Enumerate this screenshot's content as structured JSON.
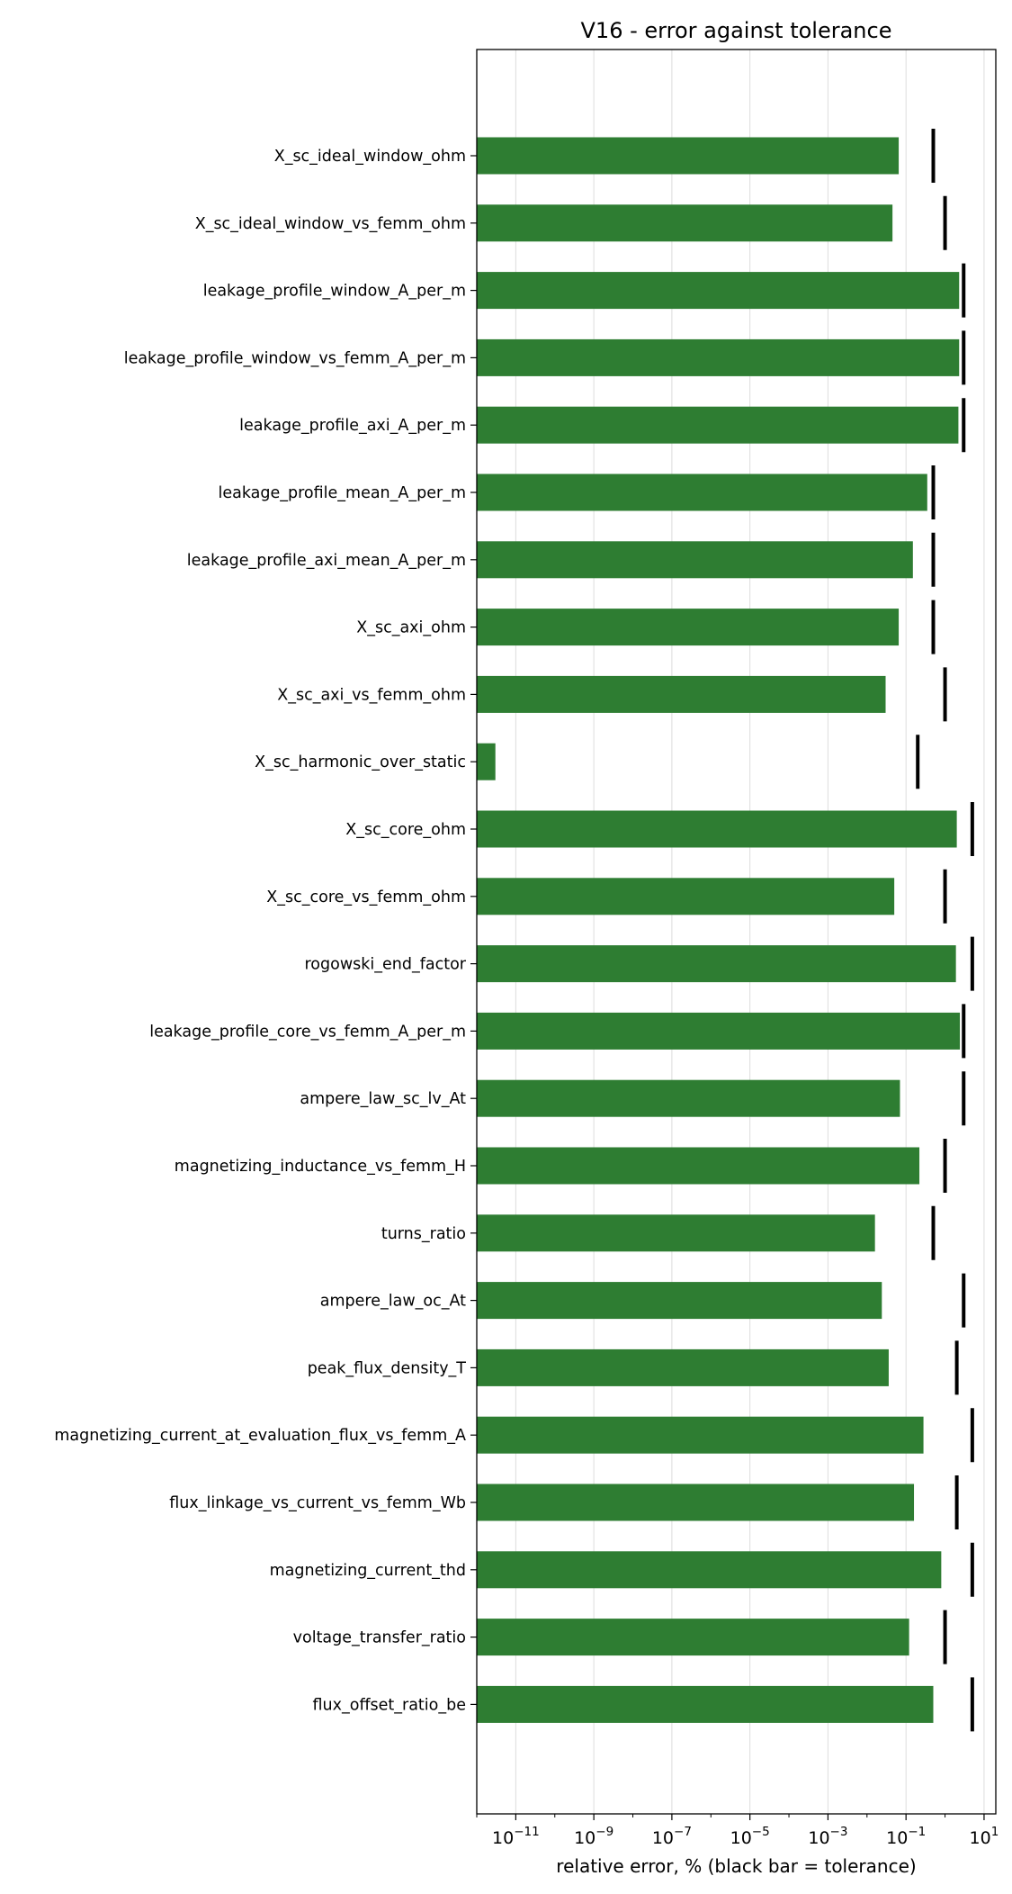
{
  "chart_data": {
    "type": "bar",
    "orientation": "horizontal",
    "title": "V16 - error against tolerance",
    "xlabel": "relative error, % (black bar = tolerance)",
    "ylabel": "",
    "xscale": "log",
    "xlim": [
      1e-12,
      20
    ],
    "grid": "vertical",
    "bar_color": "#2e7d32",
    "tolerance_color": "#000000",
    "x_ticks": [
      {
        "base": "10",
        "exp": "−11",
        "value": 1e-11
      },
      {
        "base": "10",
        "exp": "−9",
        "value": 1e-09
      },
      {
        "base": "10",
        "exp": "−7",
        "value": 1e-07
      },
      {
        "base": "10",
        "exp": "−5",
        "value": 1e-05
      },
      {
        "base": "10",
        "exp": "−3",
        "value": 0.001
      },
      {
        "base": "10",
        "exp": "−1",
        "value": 0.1
      },
      {
        "base": "10",
        "exp": "1",
        "value": 10
      }
    ],
    "categories": [
      "X_sc_ideal_window_ohm",
      "X_sc_ideal_window_vs_femm_ohm",
      "leakage_profile_window_A_per_m",
      "leakage_profile_window_vs_femm_A_per_m",
      "leakage_profile_axi_A_per_m",
      "leakage_profile_mean_A_per_m",
      "leakage_profile_axi_mean_A_per_m",
      "X_sc_axi_ohm",
      "X_sc_axi_vs_femm_ohm",
      "X_sc_harmonic_over_static",
      "X_sc_core_ohm",
      "X_sc_core_vs_femm_ohm",
      "rogowski_end_factor",
      "leakage_profile_core_vs_femm_A_per_m",
      "ampere_law_sc_lv_At",
      "magnetizing_inductance_vs_femm_H",
      "turns_ratio",
      "ampere_law_oc_At",
      "peak_flux_density_T",
      "magnetizing_current_at_evaluation_flux_vs_femm_A",
      "flux_linkage_vs_current_vs_femm_Wb",
      "magnetizing_current_thd",
      "voltage_transfer_ratio",
      "flux_offset_ratio_be"
    ],
    "series": [
      {
        "values": [
          0.065,
          0.045,
          2.3,
          2.3,
          2.2,
          0.35,
          0.15,
          0.065,
          0.03,
          3e-12,
          2.0,
          0.05,
          1.9,
          2.4,
          0.07,
          0.22,
          0.016,
          0.024,
          0.036,
          0.28,
          0.16,
          0.8,
          0.12,
          0.5
        ]
      }
    ],
    "tolerance": [
      0.5,
      1.0,
      3.0,
      3.0,
      3.0,
      0.5,
      0.5,
      0.5,
      1.0,
      0.2,
      5.0,
      1.0,
      5.0,
      3.0,
      3.0,
      1.0,
      0.5,
      3.0,
      2.0,
      5.0,
      2.0,
      5.0,
      1.0,
      5.0
    ]
  }
}
